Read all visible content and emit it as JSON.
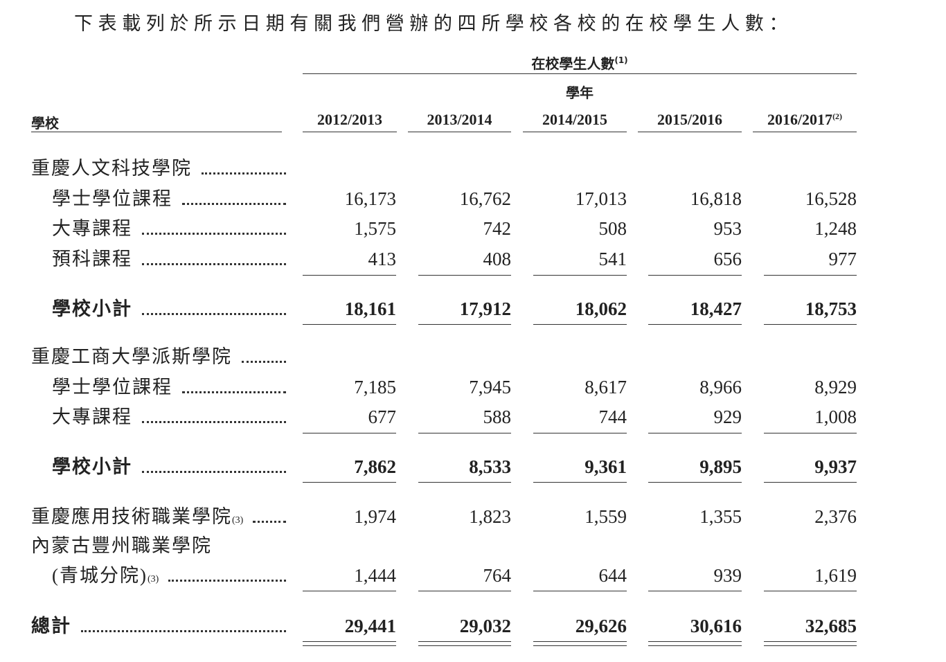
{
  "intro": "下表載列於所示日期有關我們營辦的四所學校各校的在校學生人數：",
  "header": {
    "group": "在校學生人數",
    "group_note": "(1)",
    "subgroup": "學年",
    "school_column": "學校",
    "years": [
      "2012/2013",
      "2013/2014",
      "2014/2015",
      "2015/2016",
      "2016/2017"
    ],
    "last_year_note": "(2)"
  },
  "schools": [
    {
      "name": "重慶人文科技學院",
      "programs": [
        {
          "label": "學士學位課程",
          "values": [
            "16,173",
            "16,762",
            "17,013",
            "16,818",
            "16,528"
          ]
        },
        {
          "label": "大專課程",
          "values": [
            "1,575",
            "742",
            "508",
            "953",
            "1,248"
          ]
        },
        {
          "label": "預科課程",
          "values": [
            "413",
            "408",
            "541",
            "656",
            "977"
          ]
        }
      ],
      "subtotal": {
        "label": "學校小計",
        "values": [
          "18,161",
          "17,912",
          "18,062",
          "18,427",
          "18,753"
        ]
      }
    },
    {
      "name": "重慶工商大學派斯學院",
      "programs": [
        {
          "label": "學士學位課程",
          "values": [
            "7,185",
            "7,945",
            "8,617",
            "8,966",
            "8,929"
          ]
        },
        {
          "label": "大專課程",
          "values": [
            "677",
            "588",
            "744",
            "929",
            "1,008"
          ]
        }
      ],
      "subtotal": {
        "label": "學校小計",
        "values": [
          "7,862",
          "8,533",
          "9,361",
          "9,895",
          "9,937"
        ]
      }
    },
    {
      "name": "重慶應用技術職業學院",
      "note": "(3)",
      "values": [
        "1,974",
        "1,823",
        "1,559",
        "1,355",
        "2,376"
      ]
    },
    {
      "name": "內蒙古豐州職業學院",
      "branch": "(青城分院)",
      "note": "(3)",
      "values": [
        "1,444",
        "764",
        "644",
        "939",
        "1,619"
      ]
    }
  ],
  "total": {
    "label": "總計",
    "values": [
      "29,441",
      "29,032",
      "29,626",
      "30,616",
      "32,685"
    ]
  }
}
